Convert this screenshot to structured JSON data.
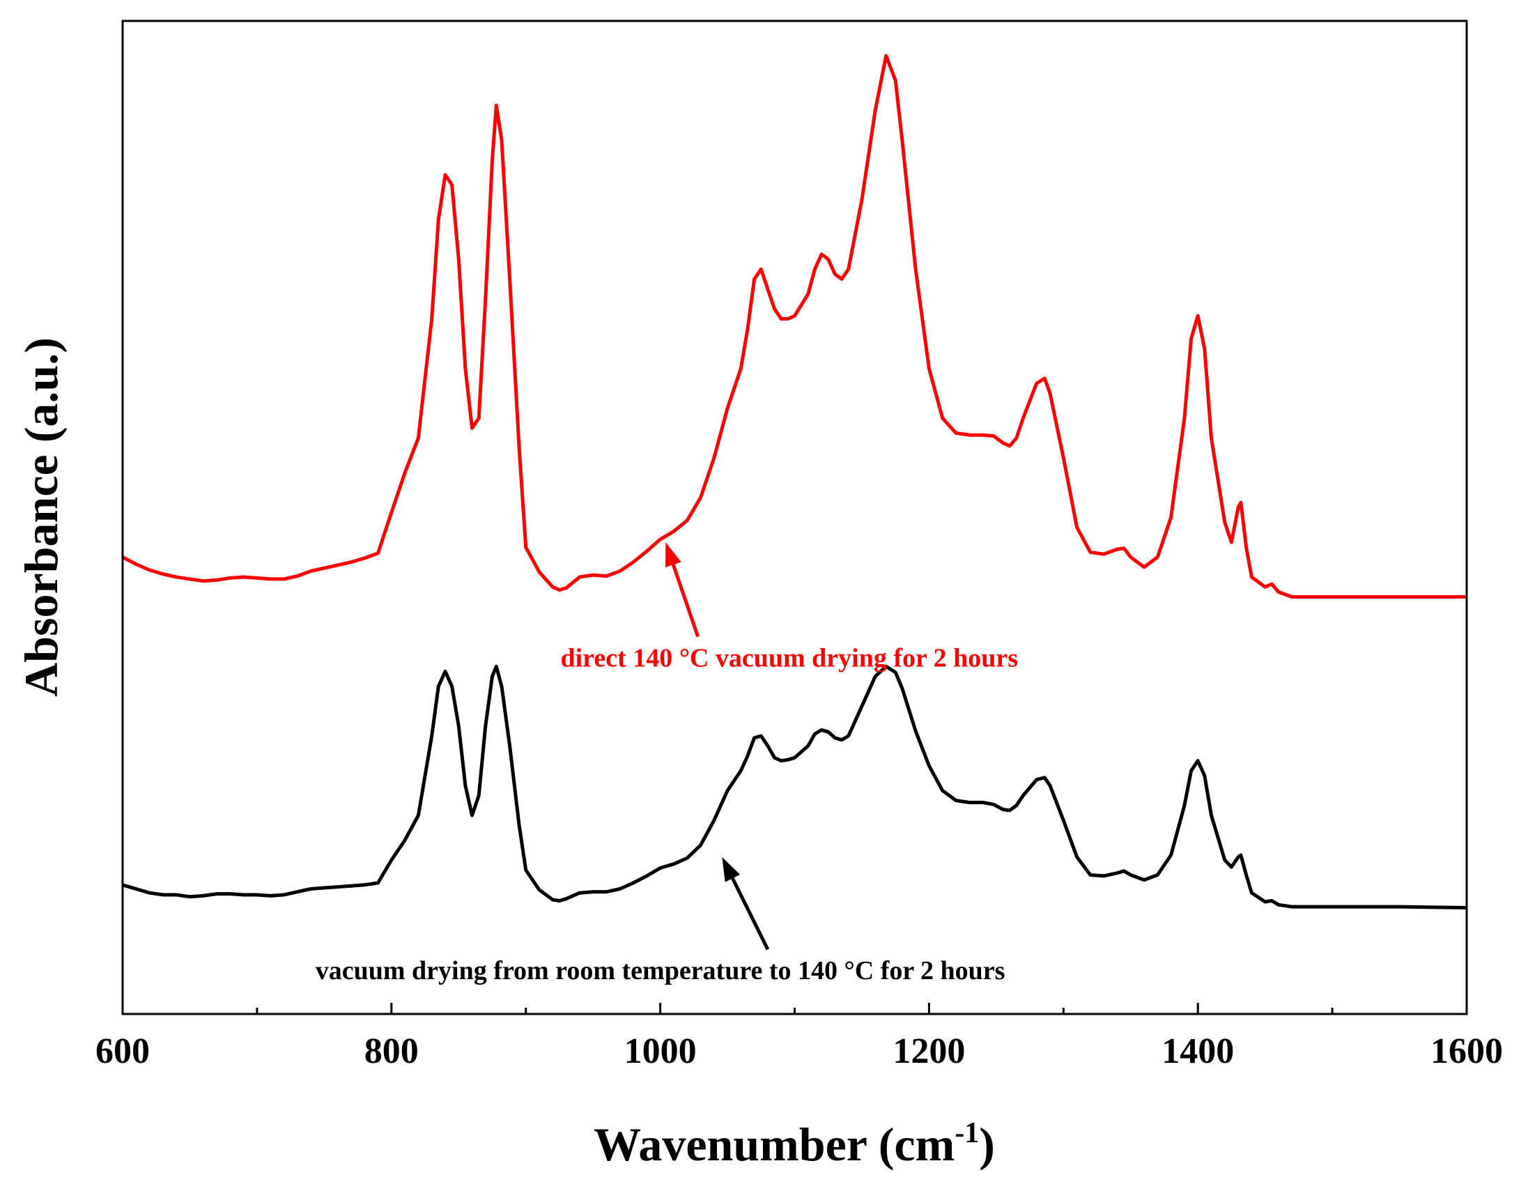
{
  "chart_data": {
    "type": "line",
    "title": "",
    "xlabel_main": "Wavenumber (cm",
    "xlabel_sup": "-1",
    "xlabel_end": ")",
    "ylabel": "Absorbance (a.u.)",
    "xlim": [
      600,
      1600
    ],
    "ylim": [
      0,
      100
    ],
    "x_ticks": [
      600,
      800,
      1000,
      1200,
      1400,
      1600
    ],
    "x_tick_labels": [
      "600",
      "800",
      "1000",
      "1200",
      "1400",
      "1600"
    ],
    "x_minor_ticks": [
      700,
      900,
      1100,
      1300,
      1500
    ],
    "colors": {
      "red": "#ff0000",
      "black": "#000000"
    },
    "series": [
      {
        "name": "direct 140 °C vacuum drying for 2 hours",
        "color": "#ff0000",
        "points": [
          [
            600,
            46.0
          ],
          [
            610,
            45.3
          ],
          [
            620,
            44.7
          ],
          [
            630,
            44.3
          ],
          [
            640,
            44.0
          ],
          [
            650,
            43.8
          ],
          [
            660,
            43.6
          ],
          [
            670,
            43.7
          ],
          [
            680,
            43.9
          ],
          [
            690,
            44.0
          ],
          [
            700,
            43.9
          ],
          [
            710,
            43.8
          ],
          [
            720,
            43.8
          ],
          [
            730,
            44.1
          ],
          [
            740,
            44.6
          ],
          [
            750,
            44.9
          ],
          [
            760,
            45.2
          ],
          [
            770,
            45.5
          ],
          [
            780,
            45.9
          ],
          [
            790,
            46.4
          ],
          [
            800,
            50.5
          ],
          [
            810,
            54.5
          ],
          [
            820,
            58.0
          ],
          [
            830,
            70.0
          ],
          [
            835,
            80.0
          ],
          [
            840,
            84.5
          ],
          [
            845,
            83.5
          ],
          [
            850,
            76.0
          ],
          [
            855,
            65.0
          ],
          [
            860,
            59.0
          ],
          [
            865,
            60.0
          ],
          [
            870,
            72.0
          ],
          [
            875,
            86.0
          ],
          [
            878,
            91.5
          ],
          [
            882,
            88.0
          ],
          [
            888,
            74.0
          ],
          [
            895,
            57.0
          ],
          [
            900,
            47.0
          ],
          [
            910,
            44.5
          ],
          [
            920,
            43.0
          ],
          [
            925,
            42.7
          ],
          [
            930,
            42.9
          ],
          [
            940,
            44.0
          ],
          [
            950,
            44.2
          ],
          [
            960,
            44.1
          ],
          [
            970,
            44.6
          ],
          [
            980,
            45.5
          ],
          [
            990,
            46.6
          ],
          [
            1000,
            47.8
          ],
          [
            1010,
            48.6
          ],
          [
            1020,
            49.7
          ],
          [
            1030,
            52.0
          ],
          [
            1040,
            56.0
          ],
          [
            1050,
            61.0
          ],
          [
            1060,
            65.0
          ],
          [
            1065,
            69.0
          ],
          [
            1070,
            74.0
          ],
          [
            1075,
            75.0
          ],
          [
            1080,
            73.0
          ],
          [
            1085,
            71.0
          ],
          [
            1090,
            70.0
          ],
          [
            1095,
            70.0
          ],
          [
            1100,
            70.3
          ],
          [
            1110,
            72.5
          ],
          [
            1115,
            75.0
          ],
          [
            1120,
            76.5
          ],
          [
            1125,
            76.0
          ],
          [
            1130,
            74.5
          ],
          [
            1135,
            74.0
          ],
          [
            1140,
            75.0
          ],
          [
            1150,
            82.0
          ],
          [
            1160,
            91.0
          ],
          [
            1168,
            96.5
          ],
          [
            1175,
            94.0
          ],
          [
            1180,
            88.0
          ],
          [
            1190,
            75.0
          ],
          [
            1200,
            65.0
          ],
          [
            1210,
            60.0
          ],
          [
            1220,
            58.5
          ],
          [
            1230,
            58.3
          ],
          [
            1240,
            58.3
          ],
          [
            1248,
            58.2
          ],
          [
            1255,
            57.5
          ],
          [
            1260,
            57.2
          ],
          [
            1265,
            58.0
          ],
          [
            1270,
            60.0
          ],
          [
            1280,
            63.5
          ],
          [
            1286,
            64.0
          ],
          [
            1290,
            62.5
          ],
          [
            1300,
            56.0
          ],
          [
            1310,
            49.0
          ],
          [
            1320,
            46.5
          ],
          [
            1330,
            46.3
          ],
          [
            1340,
            46.8
          ],
          [
            1345,
            46.9
          ],
          [
            1350,
            46.0
          ],
          [
            1360,
            45.0
          ],
          [
            1370,
            46.0
          ],
          [
            1380,
            50.0
          ],
          [
            1390,
            60.0
          ],
          [
            1395,
            68.0
          ],
          [
            1400,
            70.3
          ],
          [
            1405,
            67.0
          ],
          [
            1410,
            58.0
          ],
          [
            1420,
            49.5
          ],
          [
            1425,
            47.5
          ],
          [
            1430,
            51.0
          ],
          [
            1432,
            51.5
          ],
          [
            1436,
            47.0
          ],
          [
            1440,
            44.0
          ],
          [
            1450,
            43.0
          ],
          [
            1455,
            43.3
          ],
          [
            1460,
            42.5
          ],
          [
            1470,
            42.0
          ],
          [
            1500,
            42.0
          ],
          [
            1550,
            42.0
          ],
          [
            1600,
            42.0
          ]
        ]
      },
      {
        "name": "vacuum drying  from room temperature to 140 °C for 2 hours",
        "color": "#000000",
        "points": [
          [
            600,
            13.0
          ],
          [
            610,
            12.6
          ],
          [
            620,
            12.2
          ],
          [
            630,
            12.0
          ],
          [
            640,
            12.0
          ],
          [
            650,
            11.8
          ],
          [
            660,
            11.9
          ],
          [
            670,
            12.1
          ],
          [
            680,
            12.1
          ],
          [
            690,
            12.0
          ],
          [
            700,
            12.0
          ],
          [
            710,
            11.9
          ],
          [
            720,
            12.0
          ],
          [
            730,
            12.3
          ],
          [
            740,
            12.6
          ],
          [
            750,
            12.7
          ],
          [
            760,
            12.8
          ],
          [
            770,
            12.9
          ],
          [
            780,
            13.0
          ],
          [
            790,
            13.2
          ],
          [
            800,
            15.5
          ],
          [
            810,
            17.5
          ],
          [
            820,
            20.0
          ],
          [
            830,
            28.0
          ],
          [
            835,
            33.0
          ],
          [
            840,
            34.5
          ],
          [
            845,
            33.0
          ],
          [
            850,
            29.0
          ],
          [
            855,
            23.0
          ],
          [
            860,
            20.0
          ],
          [
            865,
            22.0
          ],
          [
            870,
            29.0
          ],
          [
            875,
            34.0
          ],
          [
            878,
            35.0
          ],
          [
            882,
            33.0
          ],
          [
            888,
            27.0
          ],
          [
            895,
            19.0
          ],
          [
            900,
            14.5
          ],
          [
            910,
            12.5
          ],
          [
            920,
            11.5
          ],
          [
            925,
            11.4
          ],
          [
            930,
            11.6
          ],
          [
            940,
            12.2
          ],
          [
            950,
            12.3
          ],
          [
            960,
            12.3
          ],
          [
            970,
            12.6
          ],
          [
            980,
            13.2
          ],
          [
            990,
            13.9
          ],
          [
            1000,
            14.7
          ],
          [
            1010,
            15.1
          ],
          [
            1020,
            15.7
          ],
          [
            1030,
            17.0
          ],
          [
            1040,
            19.5
          ],
          [
            1050,
            22.5
          ],
          [
            1060,
            24.5
          ],
          [
            1065,
            26.0
          ],
          [
            1070,
            27.8
          ],
          [
            1075,
            28.0
          ],
          [
            1080,
            27.0
          ],
          [
            1085,
            25.8
          ],
          [
            1090,
            25.5
          ],
          [
            1095,
            25.6
          ],
          [
            1100,
            25.8
          ],
          [
            1110,
            27.0
          ],
          [
            1115,
            28.2
          ],
          [
            1120,
            28.6
          ],
          [
            1125,
            28.4
          ],
          [
            1130,
            27.8
          ],
          [
            1135,
            27.6
          ],
          [
            1140,
            28.0
          ],
          [
            1150,
            31.0
          ],
          [
            1160,
            34.0
          ],
          [
            1168,
            35.0
          ],
          [
            1175,
            34.4
          ],
          [
            1180,
            32.8
          ],
          [
            1190,
            28.5
          ],
          [
            1200,
            25.0
          ],
          [
            1210,
            22.5
          ],
          [
            1220,
            21.5
          ],
          [
            1230,
            21.3
          ],
          [
            1240,
            21.3
          ],
          [
            1248,
            21.1
          ],
          [
            1255,
            20.6
          ],
          [
            1260,
            20.5
          ],
          [
            1265,
            21.0
          ],
          [
            1270,
            22.0
          ],
          [
            1280,
            23.6
          ],
          [
            1286,
            23.8
          ],
          [
            1290,
            23.0
          ],
          [
            1300,
            19.5
          ],
          [
            1310,
            15.8
          ],
          [
            1320,
            14.0
          ],
          [
            1330,
            13.9
          ],
          [
            1340,
            14.2
          ],
          [
            1345,
            14.4
          ],
          [
            1350,
            14.0
          ],
          [
            1360,
            13.5
          ],
          [
            1370,
            14.0
          ],
          [
            1380,
            16.0
          ],
          [
            1390,
            21.0
          ],
          [
            1395,
            24.5
          ],
          [
            1400,
            25.5
          ],
          [
            1405,
            24.0
          ],
          [
            1410,
            20.0
          ],
          [
            1420,
            15.5
          ],
          [
            1425,
            14.8
          ],
          [
            1430,
            15.8
          ],
          [
            1432,
            16.0
          ],
          [
            1436,
            14.0
          ],
          [
            1440,
            12.2
          ],
          [
            1450,
            11.3
          ],
          [
            1455,
            11.4
          ],
          [
            1460,
            11.0
          ],
          [
            1470,
            10.8
          ],
          [
            1500,
            10.8
          ],
          [
            1550,
            10.8
          ],
          [
            1600,
            10.7
          ]
        ]
      }
    ],
    "annotations": [
      {
        "text": "direct 140 °C vacuum drying for 2 hours",
        "color": "#ff0000",
        "text_x": 1096,
        "text_y": 35.0,
        "arrow_from": [
          1028,
          38.0
        ],
        "arrow_to": [
          1004,
          47.5
        ]
      },
      {
        "text": "vacuum drying  from room temperature to 140 °C for 2 hours",
        "color": "#000000",
        "text_x": 1000,
        "text_y": 3.5,
        "arrow_from": [
          1080,
          6.5
        ],
        "arrow_to": [
          1046,
          15.8
        ]
      }
    ]
  }
}
